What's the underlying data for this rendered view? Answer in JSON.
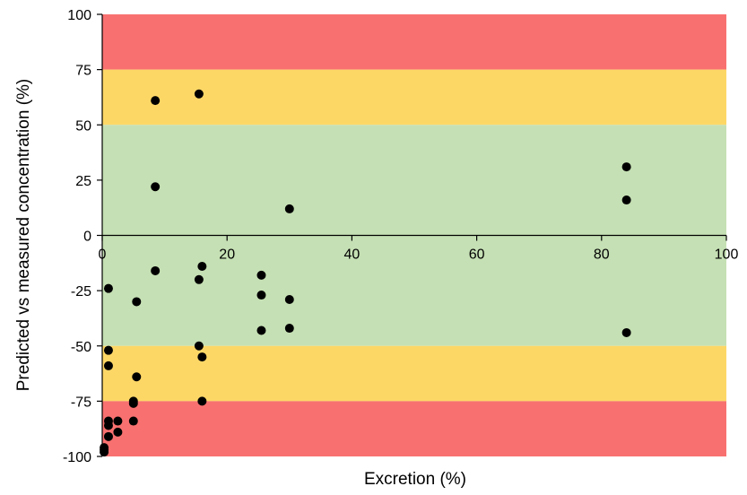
{
  "chart_data": {
    "type": "scatter",
    "title": "",
    "xlabel": "Excretion (%)",
    "ylabel": "Predicted vs measured concentration (%)",
    "xlim": [
      0,
      100
    ],
    "ylim": [
      -100,
      100
    ],
    "x_ticks": [
      0,
      20,
      40,
      60,
      80,
      100
    ],
    "x_tick_labels": [
      "0",
      "20",
      "40",
      "60",
      "80",
      "100"
    ],
    "y_ticks": [
      100,
      75,
      50,
      25,
      0,
      -25,
      -50,
      -75,
      -100
    ],
    "y_tick_labels": [
      "100",
      "75",
      "50",
      "25",
      "0",
      "-25",
      "-50",
      "-75",
      "-100"
    ],
    "grid": false,
    "legend": "none",
    "bands": [
      {
        "from": 75,
        "to": 100,
        "color": "#f87170"
      },
      {
        "from": 50,
        "to": 75,
        "color": "#fdd766"
      },
      {
        "from": -50,
        "to": 50,
        "color": "#c5e0b4"
      },
      {
        "from": -75,
        "to": -50,
        "color": "#fdd766"
      },
      {
        "from": -100,
        "to": -75,
        "color": "#f87170"
      }
    ],
    "marker_color": "#000000",
    "points": [
      {
        "x": 8.5,
        "y": 61
      },
      {
        "x": 15.5,
        "y": 64
      },
      {
        "x": 8.5,
        "y": 22
      },
      {
        "x": 30,
        "y": 12
      },
      {
        "x": 84,
        "y": 31
      },
      {
        "x": 84,
        "y": 16
      },
      {
        "x": 8.5,
        "y": -16
      },
      {
        "x": 16,
        "y": -14
      },
      {
        "x": 15.5,
        "y": -20
      },
      {
        "x": 25.5,
        "y": -18
      },
      {
        "x": 1,
        "y": -24
      },
      {
        "x": 5.5,
        "y": -30
      },
      {
        "x": 25.5,
        "y": -27
      },
      {
        "x": 30,
        "y": -29
      },
      {
        "x": 25.5,
        "y": -43
      },
      {
        "x": 30,
        "y": -42
      },
      {
        "x": 84,
        "y": -44
      },
      {
        "x": 15.5,
        "y": -50
      },
      {
        "x": 16,
        "y": -55
      },
      {
        "x": 1,
        "y": -52
      },
      {
        "x": 1,
        "y": -59
      },
      {
        "x": 5.5,
        "y": -64
      },
      {
        "x": 16,
        "y": -75
      },
      {
        "x": 5,
        "y": -75
      },
      {
        "x": 5,
        "y": -76
      },
      {
        "x": 1,
        "y": -84
      },
      {
        "x": 1,
        "y": -86
      },
      {
        "x": 2.5,
        "y": -84
      },
      {
        "x": 5,
        "y": -84
      },
      {
        "x": 1,
        "y": -91
      },
      {
        "x": 2.5,
        "y": -89
      },
      {
        "x": 0.3,
        "y": -96
      },
      {
        "x": 0.3,
        "y": -97
      },
      {
        "x": 0.3,
        "y": -98
      }
    ]
  }
}
